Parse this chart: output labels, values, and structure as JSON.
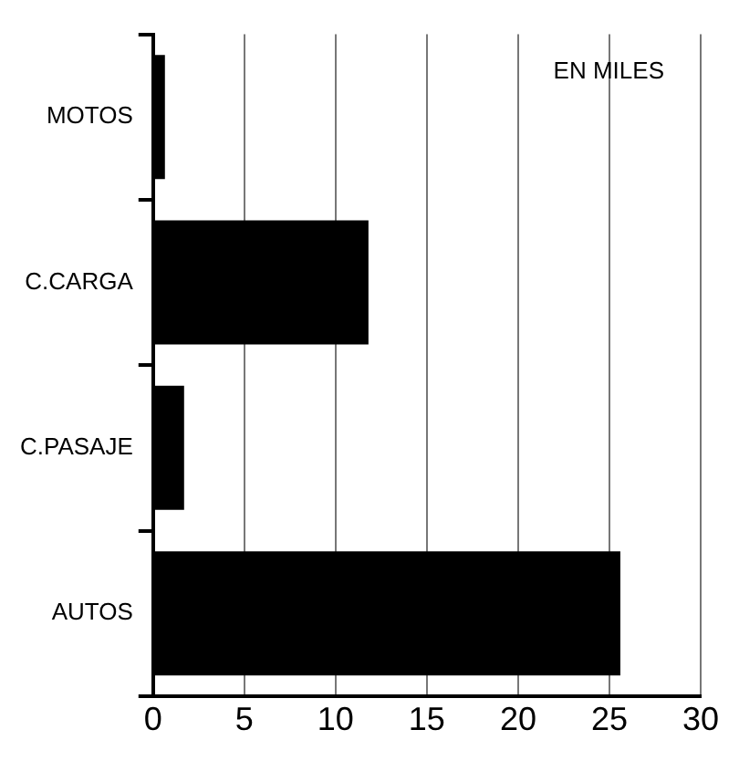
{
  "chart_data": {
    "type": "bar",
    "orientation": "horizontal",
    "categories": [
      "MOTOS",
      "C.CARGA",
      "C.PASAJE",
      "AUTOS"
    ],
    "values": [
      0.65,
      11.8,
      1.7,
      25.6
    ],
    "color": "#000000",
    "xlim": [
      0,
      30
    ],
    "xticks": [
      0,
      5,
      10,
      15,
      20,
      25,
      30
    ],
    "grid": "x",
    "legend": false,
    "annotations": [
      "EN MILES"
    ]
  }
}
